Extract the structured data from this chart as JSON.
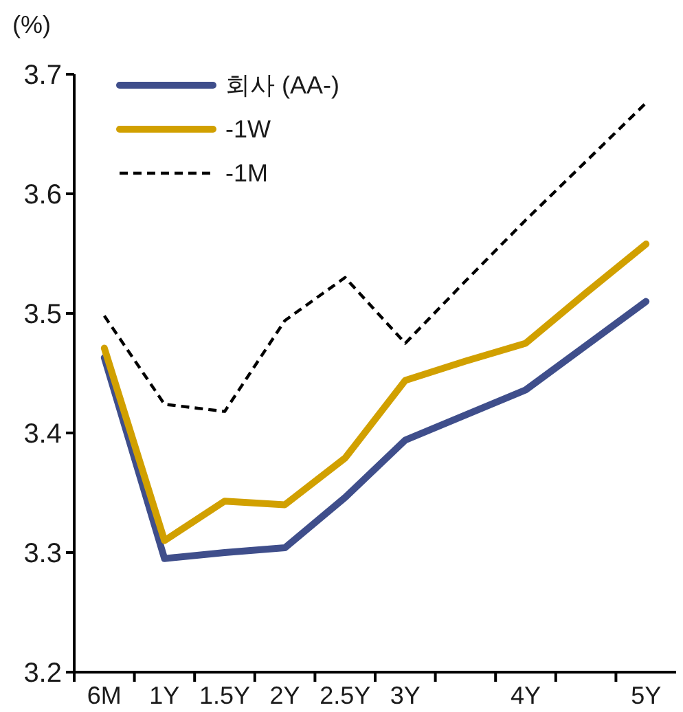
{
  "chart_data": {
    "type": "line",
    "ylabel": "(%)",
    "categories": [
      "6M",
      "1Y",
      "1.5Y",
      "2Y",
      "2.5Y",
      "3Y",
      null,
      "4Y",
      null,
      "5Y"
    ],
    "ylim": [
      3.2,
      3.7
    ],
    "yticks": [
      3.2,
      3.3,
      3.4,
      3.5,
      3.6,
      3.7
    ],
    "series": [
      {
        "name": "회사 (AA-)",
        "color": "#3f4e8b",
        "values": [
          3.463,
          3.295,
          3.3,
          3.304,
          3.346,
          3.394,
          3.415,
          3.436,
          3.473,
          3.51
        ]
      },
      {
        "name": "-1W",
        "color": "#d1a000",
        "values": [
          3.471,
          3.31,
          3.343,
          3.34,
          3.379,
          3.444,
          3.46,
          3.475,
          3.517,
          3.558
        ]
      },
      {
        "name": "-1M",
        "color": "#000000",
        "line_style": "dashed",
        "values": [
          3.498,
          3.424,
          3.418,
          3.494,
          3.53,
          3.475,
          3.527,
          3.578,
          3.627,
          3.676
        ]
      }
    ],
    "legend": "top left",
    "line_style": "solid"
  }
}
